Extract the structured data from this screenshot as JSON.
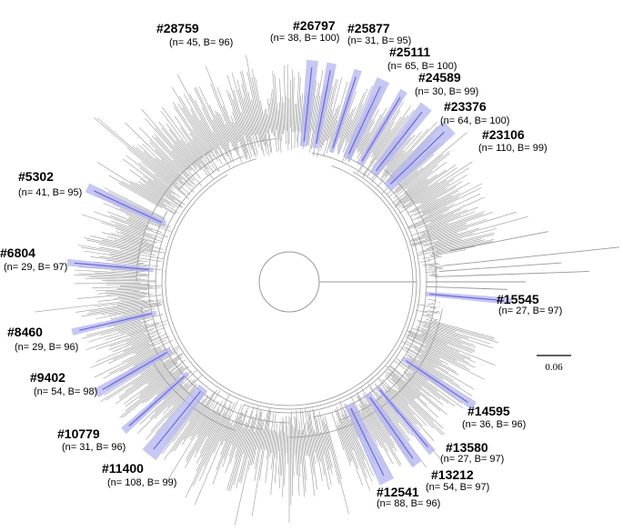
{
  "tree": {
    "branch_color": "#9a9a9a",
    "highlight_color": "#b4b4f0",
    "highlight_line_color": "#6a6ad8"
  },
  "scale_bar": {
    "label": "0.06"
  },
  "clusters": [
    {
      "id": "28759",
      "label": "#28759",
      "stats": "(n= 45, B= 96)"
    },
    {
      "id": "26797",
      "label": "#26797",
      "stats": "(n= 38, B= 100)"
    },
    {
      "id": "25877",
      "label": "#25877",
      "stats": "(n= 31, B= 95)"
    },
    {
      "id": "25111",
      "label": "#25111",
      "stats": "(n= 65, B= 100)"
    },
    {
      "id": "24589",
      "label": "#24589",
      "stats": "(n= 30, B= 99)"
    },
    {
      "id": "23376",
      "label": "#23376",
      "stats": "(n= 64, B= 100)"
    },
    {
      "id": "23106",
      "label": "#23106",
      "stats": "(n= 110, B= 99)"
    },
    {
      "id": "5302",
      "label": "#5302",
      "stats": "(n= 41, B= 95)"
    },
    {
      "id": "6804",
      "label": "#6804",
      "stats": "(n= 29, B= 97)"
    },
    {
      "id": "8460",
      "label": "#8460",
      "stats": "(n= 29, B= 96)"
    },
    {
      "id": "9402",
      "label": "#9402",
      "stats": "(n= 54, B= 98)"
    },
    {
      "id": "10779",
      "label": "#10779",
      "stats": "(n= 31, B= 96)"
    },
    {
      "id": "11400",
      "label": "#11400",
      "stats": "(n= 108, B= 99)"
    },
    {
      "id": "15545",
      "label": "#15545",
      "stats": "(n= 27, B= 97)"
    },
    {
      "id": "14595",
      "label": "#14595",
      "stats": "(n= 36, B= 96)"
    },
    {
      "id": "13580",
      "label": "#13580",
      "stats": "(n= 27, B= 97)"
    },
    {
      "id": "13212",
      "label": "#13212",
      "stats": "(n= 54, B= 97)"
    },
    {
      "id": "12541",
      "label": "#12541",
      "stats": "(n= 88, B= 96)"
    }
  ]
}
